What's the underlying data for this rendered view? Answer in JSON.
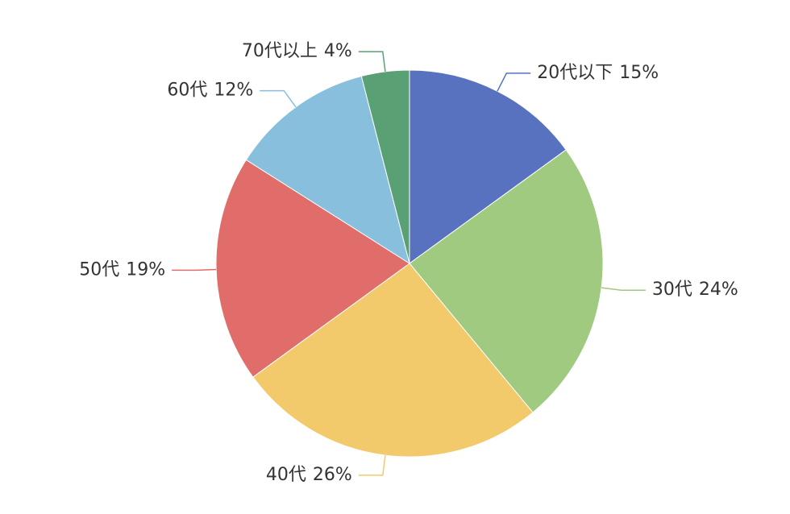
{
  "chart_data": {
    "type": "pie",
    "categories": [
      "20代以下",
      "30代",
      "40代",
      "50代",
      "60代",
      "70代以上"
    ],
    "values": [
      15,
      24,
      26,
      19,
      12,
      4
    ],
    "value_labels": [
      "15%",
      "24%",
      "26%",
      "19%",
      "12%",
      "4%"
    ],
    "colors": [
      "#5872c0",
      "#9fca7f",
      "#f2c96b",
      "#e06d69",
      "#87bfdc",
      "#5aa075"
    ]
  }
}
